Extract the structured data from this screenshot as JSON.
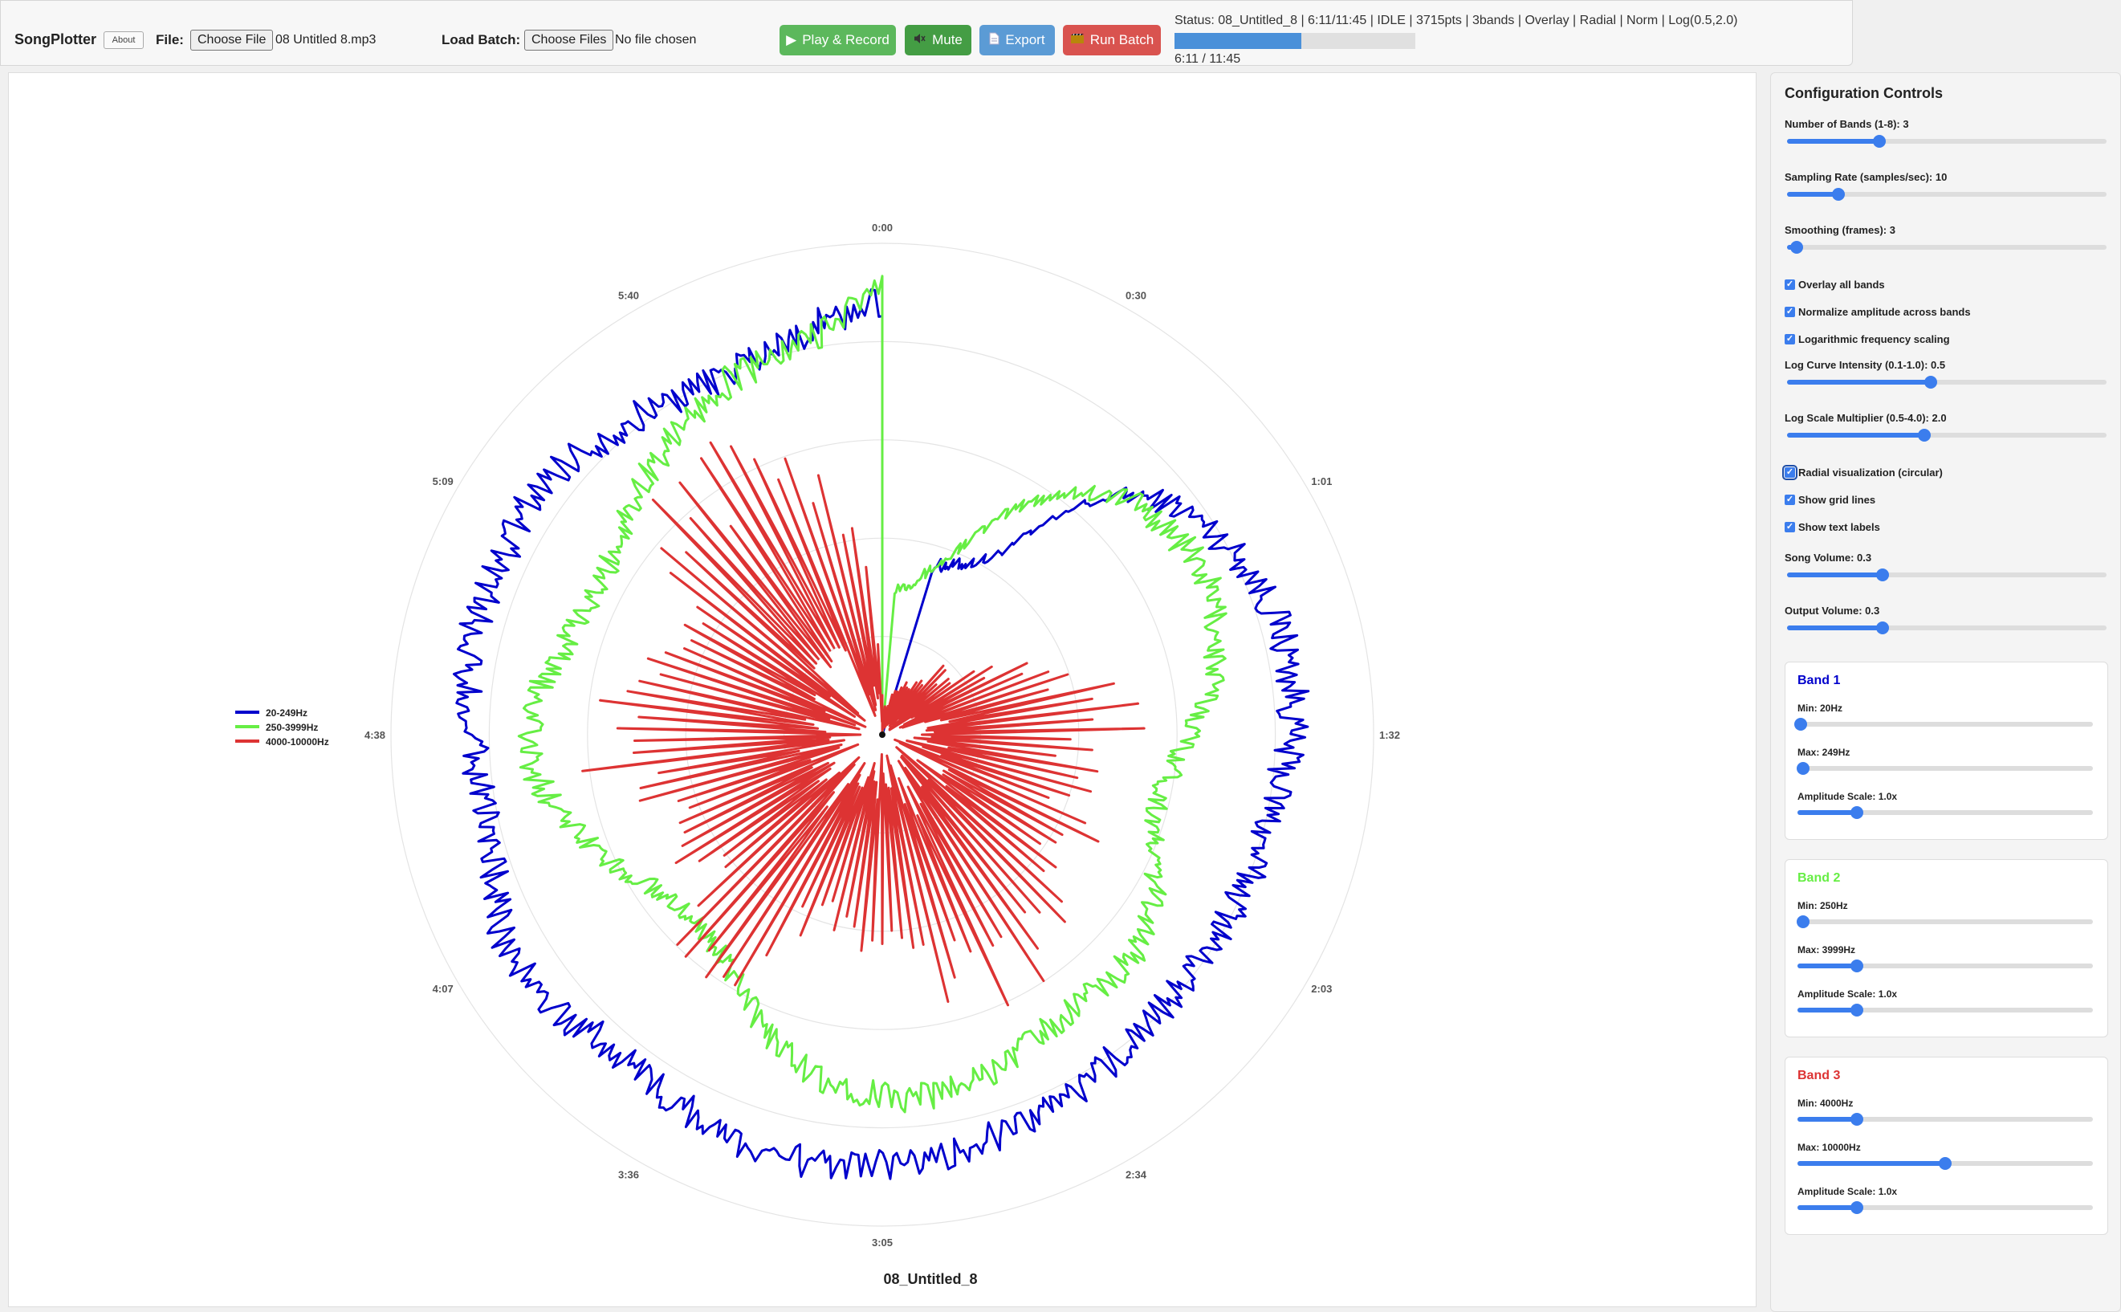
{
  "toolbar": {
    "app_title": "SongPlotter",
    "about_label": "About",
    "file_label": "File:",
    "file_button": "Choose File",
    "file_name": "08 Untitled 8.mp3",
    "batch_label": "Load Batch:",
    "batch_button": "Choose Files",
    "batch_name": "No file chosen",
    "play_label": "Play & Record",
    "mute_label": "Mute",
    "export_label": "Export",
    "run_batch_label": "Run Batch",
    "status": "Status: 08_Untitled_8 | 6:11/11:45 | IDLE | 3715pts | 3bands | Overlay | Radial | Norm | Log(0.5,2.0)",
    "progress_fraction": 0.527,
    "time": "6:11 / 11:45"
  },
  "chart_data": {
    "type": "line",
    "subtype": "radial",
    "title": "08_Untitled_8",
    "angle_labels": [
      "0:00",
      "0:30",
      "1:01",
      "1:32",
      "2:03",
      "2:34",
      "3:05",
      "3:36",
      "4:07",
      "4:38",
      "5:09",
      "5:40"
    ],
    "grid": true,
    "legend_position": "left",
    "series": [
      {
        "name": "20-249Hz",
        "color": "#0000cc",
        "kind": "smooth",
        "start_angle_deg": 17,
        "values": [
          0.36,
          0.37,
          0.39,
          0.42,
          0.51,
          0.63,
          0.71,
          0.75,
          0.78,
          0.8,
          0.82,
          0.83,
          0.84,
          0.84,
          0.84,
          0.83,
          0.82,
          0.81,
          0.8,
          0.8,
          0.8,
          0.8,
          0.79,
          0.79,
          0.8,
          0.8,
          0.81,
          0.82,
          0.83,
          0.84,
          0.85,
          0.86,
          0.86,
          0.87,
          0.88,
          0.88,
          0.89,
          0.88,
          0.87,
          0.86,
          0.85,
          0.84,
          0.84,
          0.86,
          0.88,
          0.88,
          0.87,
          0.85,
          0.83,
          0.82,
          0.82,
          0.83,
          0.84,
          0.85,
          0.86,
          0.86,
          0.85,
          0.85,
          0.86,
          0.86,
          0.85,
          0.83,
          0.82,
          0.81,
          0.8,
          0.8,
          0.81,
          0.82,
          0.84,
          0.86,
          0.88
        ]
      },
      {
        "name": "250-3999Hz",
        "color": "#66ee44",
        "kind": "smooth",
        "start_angle_deg": 5,
        "values": [
          0.3,
          0.31,
          0.34,
          0.38,
          0.45,
          0.53,
          0.6,
          0.65,
          0.69,
          0.71,
          0.72,
          0.73,
          0.73,
          0.72,
          0.7,
          0.68,
          0.65,
          0.62,
          0.6,
          0.58,
          0.58,
          0.59,
          0.62,
          0.65,
          0.67,
          0.68,
          0.68,
          0.68,
          0.68,
          0.69,
          0.7,
          0.72,
          0.73,
          0.74,
          0.74,
          0.73,
          0.72,
          0.7,
          0.67,
          0.64,
          0.6,
          0.57,
          0.55,
          0.54,
          0.54,
          0.55,
          0.57,
          0.6,
          0.63,
          0.66,
          0.69,
          0.71,
          0.72,
          0.72,
          0.7,
          0.68,
          0.66,
          0.65,
          0.65,
          0.66,
          0.68,
          0.7,
          0.72,
          0.74,
          0.76,
          0.78,
          0.79,
          0.8,
          0.82,
          0.86,
          0.91
        ]
      },
      {
        "name": "4000-10000Hz",
        "color": "#dd3333",
        "kind": "spiky",
        "start_angle_deg": 0,
        "values": [
          0.04,
          0.06,
          0.08,
          0.1,
          0.12,
          0.14,
          0.15,
          0.17,
          0.19,
          0.2,
          0.22,
          0.25,
          0.3,
          0.38,
          0.46,
          0.52,
          0.55,
          0.55,
          0.53,
          0.5,
          0.48,
          0.48,
          0.5,
          0.52,
          0.55,
          0.58,
          0.6,
          0.62,
          0.63,
          0.63,
          0.62,
          0.6,
          0.58,
          0.55,
          0.52,
          0.48,
          0.45,
          0.44,
          0.46,
          0.5,
          0.55,
          0.6,
          0.62,
          0.62,
          0.6,
          0.58,
          0.56,
          0.55,
          0.56,
          0.58,
          0.6,
          0.62,
          0.63,
          0.62,
          0.6,
          0.57,
          0.55,
          0.54,
          0.55,
          0.58,
          0.62,
          0.66,
          0.7,
          0.72,
          0.72,
          0.7,
          0.66,
          0.6,
          0.5,
          0.38,
          0.1
        ]
      }
    ]
  },
  "config": {
    "title": "Configuration Controls",
    "sliders": [
      {
        "label": "Number of Bands (1-8): 3",
        "fraction": 0.29
      },
      {
        "label": "Sampling Rate (samples/sec): 10",
        "fraction": 0.16
      },
      {
        "label": "Smoothing (frames): 3",
        "fraction": 0.03
      },
      {
        "label": "Log Curve Intensity (0.1-1.0): 0.5",
        "fraction": 0.45
      },
      {
        "label": "Log Scale Multiplier (0.5-4.0): 2.0",
        "fraction": 0.43
      },
      {
        "label": "Song Volume: 0.3",
        "fraction": 0.3
      },
      {
        "label": "Output Volume: 0.3",
        "fraction": 0.3
      }
    ],
    "checkboxes": [
      {
        "label": "Overlay all bands",
        "checked": true
      },
      {
        "label": "Normalize amplitude across bands",
        "checked": true
      },
      {
        "label": "Logarithmic frequency scaling",
        "checked": true
      },
      {
        "label": "Radial visualization (circular)",
        "checked": true
      },
      {
        "label": "Show grid lines",
        "checked": true
      },
      {
        "label": "Show text labels",
        "checked": true
      }
    ],
    "bands": [
      {
        "title": "Band 1",
        "color": "#0000cc",
        "min_label": "Min: 20Hz",
        "min_fraction": 0.01,
        "max_label": "Max: 249Hz",
        "max_fraction": 0.02,
        "amp_label": "Amplitude Scale: 1.0x",
        "amp_fraction": 0.2
      },
      {
        "title": "Band 2",
        "color": "#66ee44",
        "min_label": "Min: 250Hz",
        "min_fraction": 0.02,
        "max_label": "Max: 3999Hz",
        "max_fraction": 0.2,
        "amp_label": "Amplitude Scale: 1.0x",
        "amp_fraction": 0.2
      },
      {
        "title": "Band 3",
        "color": "#dd3333",
        "min_label": "Min: 4000Hz",
        "min_fraction": 0.2,
        "max_label": "Max: 10000Hz",
        "max_fraction": 0.5,
        "amp_label": "Amplitude Scale: 1.0x",
        "amp_fraction": 0.2
      }
    ]
  }
}
